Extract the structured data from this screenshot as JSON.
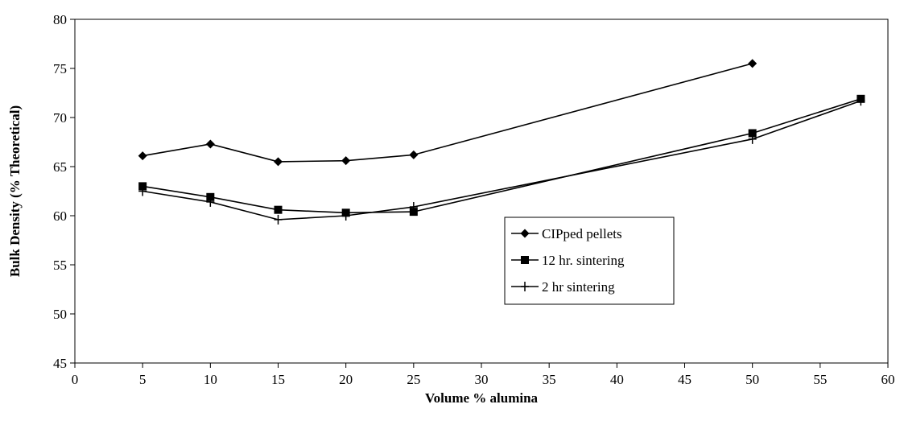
{
  "chart_data": {
    "type": "line",
    "title": "",
    "xlabel": "Volume % alumina",
    "ylabel": "Bulk Density (% Theoretical)",
    "xlim": [
      0,
      60
    ],
    "ylim": [
      45,
      80
    ],
    "x_ticks": [
      0,
      5,
      10,
      15,
      20,
      25,
      30,
      35,
      40,
      45,
      50,
      55,
      60
    ],
    "y_ticks": [
      45,
      50,
      55,
      60,
      65,
      70,
      75,
      80
    ],
    "grid": false,
    "legend_position": "center-right",
    "series": [
      {
        "name": "CIPped pellets",
        "marker": "diamond",
        "color": "#000000",
        "x": [
          5,
          10,
          15,
          20,
          25,
          50
        ],
        "y": [
          66.1,
          67.3,
          65.5,
          65.6,
          66.2,
          75.5
        ]
      },
      {
        "name": "12 hr. sintering",
        "marker": "square",
        "color": "#000000",
        "x": [
          5,
          10,
          15,
          20,
          25,
          50,
          58
        ],
        "y": [
          63.0,
          61.9,
          60.6,
          60.3,
          60.4,
          68.4,
          71.9
        ]
      },
      {
        "name": "2 hr sintering",
        "marker": "plus",
        "color": "#000000",
        "x": [
          5,
          10,
          15,
          20,
          25,
          50,
          58
        ],
        "y": [
          62.5,
          61.4,
          59.6,
          60.0,
          60.9,
          67.8,
          71.7
        ]
      }
    ]
  }
}
